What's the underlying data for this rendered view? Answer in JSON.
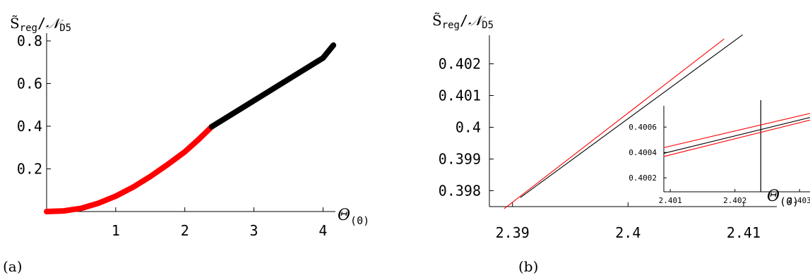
{
  "chart_data": [
    {
      "type": "line",
      "panel_label": "(a)",
      "ylabel": "S̃reg/𝒩D5",
      "xlabel": "Θ(0)",
      "xlim": [
        0,
        4.2
      ],
      "ylim": [
        0,
        0.8
      ],
      "xticks": [
        1,
        2,
        3,
        4
      ],
      "xtick_labels": [
        "1",
        "2",
        "3",
        "4"
      ],
      "yticks": [
        0.2,
        0.4,
        0.6,
        0.8
      ],
      "ytick_labels": [
        "0.2",
        "0.4",
        "0.6",
        "0.8"
      ],
      "series": [
        {
          "color": "#ff0000",
          "x": [
            0,
            0.25,
            0.5,
            0.75,
            1.0,
            1.25,
            1.5,
            1.75,
            2.0,
            2.2,
            2.39
          ],
          "y": [
            0.0,
            0.003,
            0.015,
            0.039,
            0.072,
            0.114,
            0.164,
            0.22,
            0.28,
            0.338,
            0.398
          ]
        },
        {
          "color": "#000000",
          "x": [
            2.39,
            2.8,
            3.2,
            3.6,
            4.0,
            4.15
          ],
          "y": [
            0.398,
            0.48,
            0.56,
            0.64,
            0.72,
            0.78
          ]
        }
      ]
    },
    {
      "type": "line",
      "panel_label": "(b)",
      "ylabel": "S̃reg/𝒩D5",
      "xlabel": "Θ(0)",
      "xlim": [
        2.388,
        2.413
      ],
      "ylim": [
        0.3975,
        0.4029
      ],
      "xticks": [
        2.39,
        2.4,
        2.41
      ],
      "xtick_labels": [
        "2.39",
        "2.4",
        "2.41"
      ],
      "yticks": [
        0.398,
        0.399,
        0.4,
        0.401,
        0.402
      ],
      "ytick_labels": [
        "0.398",
        "0.399",
        "0.4",
        "0.401",
        "0.402"
      ],
      "series": [
        {
          "color": "#ff0000",
          "x": [
            2.3893,
            2.4083
          ],
          "y": [
            0.39744,
            0.40278
          ]
        },
        {
          "color": "#000000",
          "x": [
            2.3907,
            2.4099
          ],
          "y": [
            0.39779,
            0.40291
          ]
        }
      ],
      "inset": {
        "xlim": [
          2.4009,
          2.4035
        ],
        "ylim": [
          0.40009,
          0.40079
        ],
        "xticks": [
          2.401,
          2.402,
          2.403
        ],
        "xtick_labels": [
          "2.401",
          "2.402",
          "2.403"
        ],
        "yticks": [
          0.4002,
          0.4004,
          0.4006
        ],
        "ytick_labels": [
          "0.4002",
          "0.4004",
          "0.4006"
        ],
        "vline_x": 2.4024,
        "series": [
          {
            "color": "#ff0000",
            "x": [
              2.4009,
              2.4035
            ],
            "y": [
              0.400438,
              0.400748
            ]
          },
          {
            "color": "#ff0000",
            "x": [
              2.4009,
              2.4035
            ],
            "y": [
              0.400368,
              0.400698
            ]
          },
          {
            "color": "#000000",
            "x": [
              2.4009,
              2.4035
            ],
            "y": [
              0.400393,
              0.400718
            ]
          }
        ]
      }
    }
  ]
}
